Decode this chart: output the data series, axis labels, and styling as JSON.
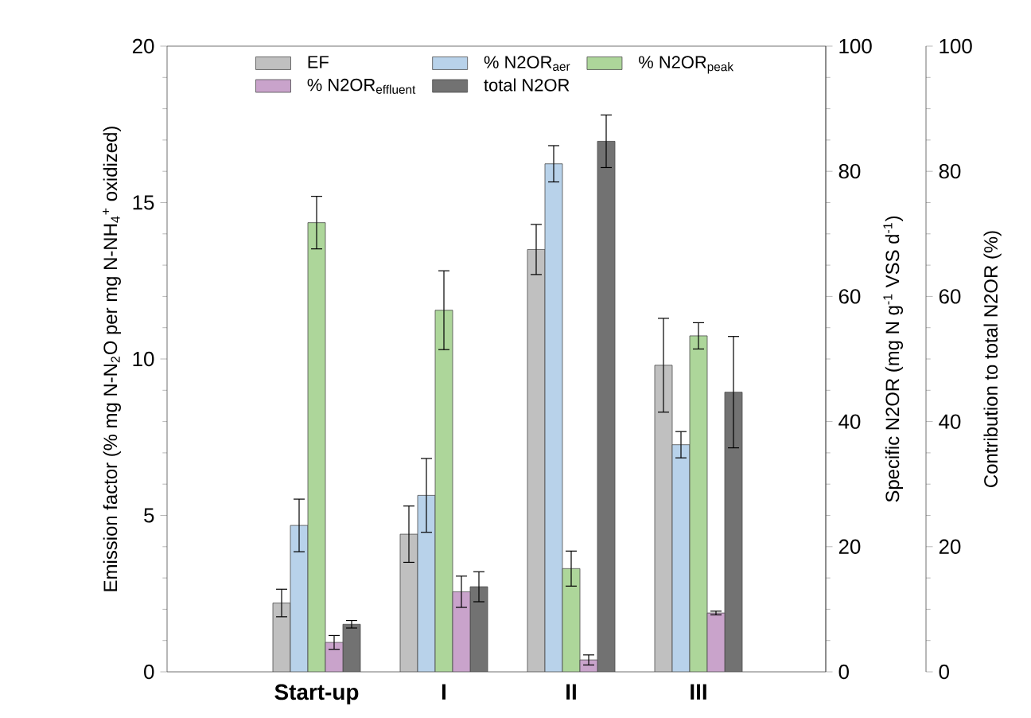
{
  "chart_data": {
    "type": "bar",
    "categories": [
      "Start-up",
      "I",
      "II",
      "III"
    ],
    "ylabel": "Emission factor (% mg N-N$_{2}$O per mg N-NH$_{4}$$^{+}$ oxidized)",
    "y2label": "Specific N2OR (mg N g$^{-1}$ VSS d$^{-1}$)",
    "y3label": "Contribution to total N2OR (%)",
    "ylim": [
      0,
      20
    ],
    "yticks": [
      0,
      5,
      10,
      15,
      20
    ],
    "y2lim": [
      0,
      100
    ],
    "y2ticks": [
      0,
      20,
      40,
      60,
      80,
      100
    ],
    "y3lim": [
      0,
      100
    ],
    "y3ticks": [
      0,
      20,
      40,
      60,
      80,
      100
    ],
    "legend": "top",
    "series": [
      {
        "name": "EF",
        "color": "#c0c0c0",
        "values": [
          2.2,
          4.4,
          13.5,
          9.8
        ],
        "errors": [
          0.44,
          0.9,
          0.8,
          1.5
        ]
      },
      {
        "name": "% N2OR$_{aer}$",
        "color": "#b8d2ea",
        "axis": "y3",
        "values": [
          23.4,
          28.2,
          81.2,
          36.3
        ],
        "errors": [
          4.2,
          5.9,
          2.9,
          2.1
        ]
      },
      {
        "name": "% N2OR$_{peak}$",
        "color": "#add69a",
        "axis": "y3",
        "values": [
          71.8,
          57.8,
          16.5,
          53.7
        ],
        "errors": [
          4.2,
          6.3,
          2.8,
          2.1
        ]
      },
      {
        "name": "% N2OR$_{effluent}$",
        "color": "#c9a3cb",
        "axis": "y3",
        "values": [
          4.7,
          12.8,
          1.9,
          9.4
        ],
        "errors": [
          1.1,
          2.5,
          0.8,
          0.3
        ]
      },
      {
        "name": "total N2OR",
        "color": "#727272",
        "axis": "y2",
        "values": [
          7.6,
          13.6,
          84.8,
          44.7
        ],
        "errors": [
          0.6,
          2.4,
          4.2,
          8.9
        ]
      }
    ]
  }
}
